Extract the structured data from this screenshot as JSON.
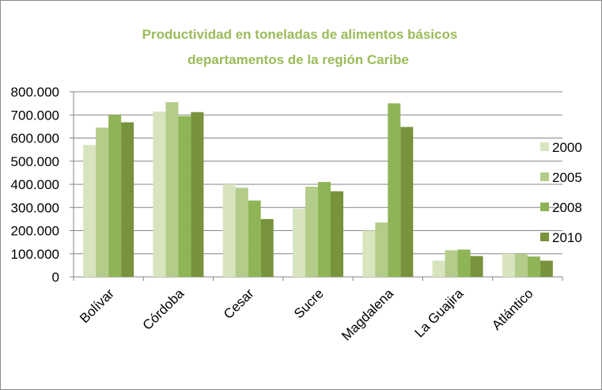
{
  "chart_data": {
    "type": "bar",
    "title": "Productividad en toneladas de alimentos básicos",
    "subtitle": "departamentos de la región Caribe",
    "categories": [
      "Bolívar",
      "Córdoba",
      "Cesar",
      "Sucre",
      "Magdalena",
      "La Guajira",
      "Atlántico"
    ],
    "series": [
      {
        "name": "2000",
        "color": "#d7e4bd",
        "values": [
          570000,
          715000,
          400000,
          295000,
          200000,
          70000,
          100000
        ]
      },
      {
        "name": "2005",
        "color": "#b3cc8a",
        "values": [
          645000,
          755000,
          385000,
          390000,
          235000,
          115000,
          100000
        ]
      },
      {
        "name": "2008",
        "color": "#8fb456",
        "values": [
          700000,
          695000,
          330000,
          410000,
          750000,
          118000,
          88000
        ]
      },
      {
        "name": "2010",
        "color": "#77933c",
        "values": [
          668000,
          712000,
          250000,
          370000,
          648000,
          90000,
          70000
        ]
      }
    ],
    "ylim": [
      0,
      800000
    ],
    "yticks": [
      0,
      100000,
      200000,
      300000,
      400000,
      500000,
      600000,
      700000,
      800000
    ],
    "ytick_labels": [
      "0",
      "100.000",
      "200.000",
      "300.000",
      "400.000",
      "500.000",
      "600.000",
      "700.000",
      "800.000"
    ],
    "grid": true,
    "legend_position": "right",
    "title_color": "#9bbb59",
    "grid_color": "#868686"
  }
}
